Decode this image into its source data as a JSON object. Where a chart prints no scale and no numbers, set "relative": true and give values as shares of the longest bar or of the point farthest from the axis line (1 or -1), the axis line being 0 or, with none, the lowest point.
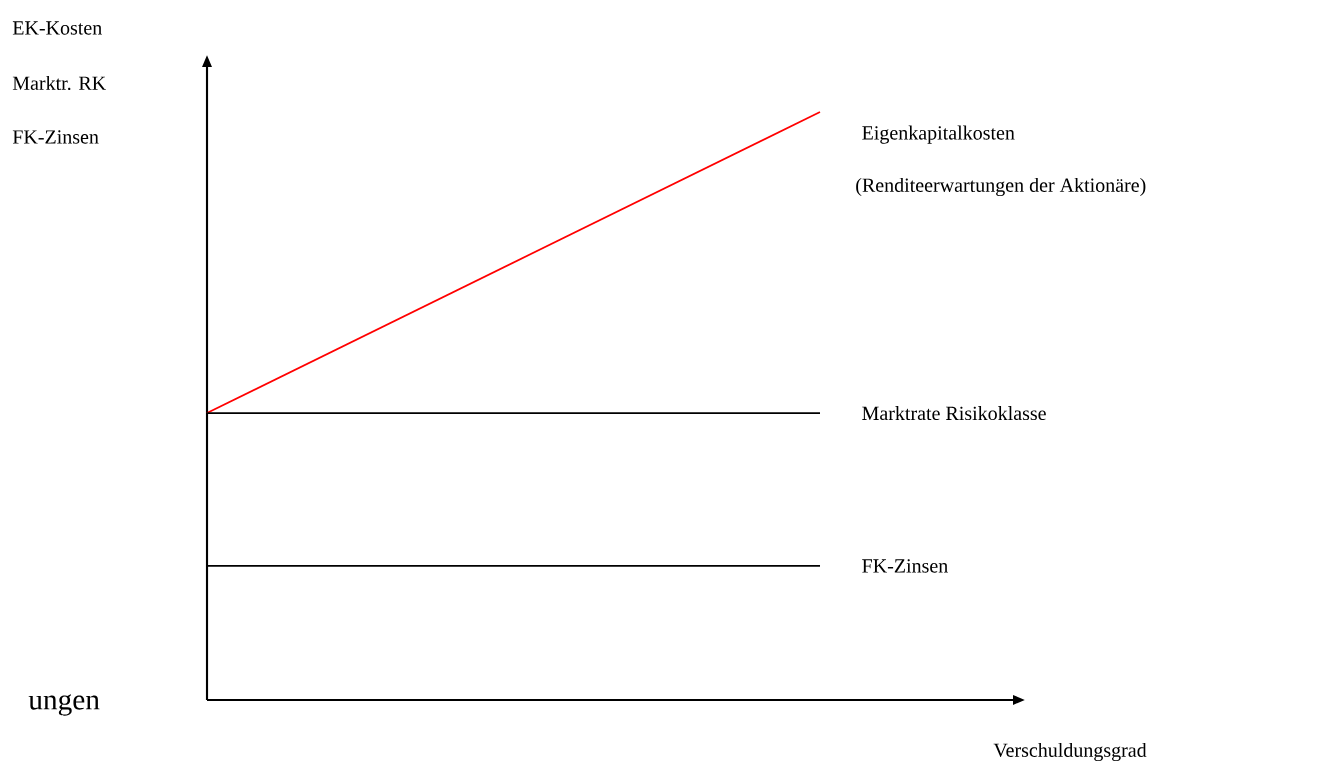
{
  "chart_data": {
    "type": "line",
    "relative": true,
    "xlabel": "Verschuldungsgrad",
    "categories": [
      null,
      null
    ],
    "series": [
      {
        "name": "Eigenkapitalkosten",
        "color": "#ff0000",
        "values": [
          0.488,
          1
        ]
      },
      {
        "name": "Marktrate Risikoklasse",
        "color": "#000000",
        "values": [
          0.488,
          0.488
        ]
      },
      {
        "name": "FK-Zinsen",
        "color": "#000000",
        "values": [
          0.228,
          0.228
        ]
      }
    ],
    "annotations": [
      "(Renditeerwartungen der Aktionäre)",
      "EK-Kosten",
      "Marktr. RK",
      "FK-Zinsen",
      "ungen"
    ]
  }
}
